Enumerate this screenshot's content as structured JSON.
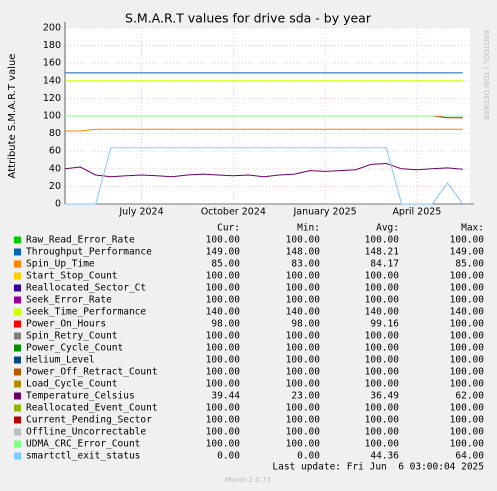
{
  "chart_data": {
    "type": "line",
    "title": "S.M.A.R.T values for drive sda - by year",
    "y_label": "Attribute S.M.A.R.T value",
    "side_text": "RRDTOOL / TOBI OETIKER",
    "categories": [
      null,
      null,
      null,
      null,
      null,
      "July 2024",
      null,
      null,
      null,
      null,
      null,
      "October 2024",
      null,
      null,
      null,
      null,
      null,
      "January 2025",
      null,
      null,
      null,
      null,
      null,
      "April 2025",
      null,
      null,
      null
    ],
    "ylim": [
      0,
      200
    ],
    "yticks": [
      0,
      20,
      40,
      60,
      80,
      100,
      120,
      140,
      160,
      180,
      200
    ],
    "grid": true,
    "legend_headers": [
      "Cur:",
      "Min:",
      "Avg:",
      "Max:"
    ],
    "series": [
      {
        "name": "Raw_Read_Error_Rate",
        "color": "#00cc00",
        "values": [
          100,
          100,
          100,
          100,
          100,
          100,
          100,
          100,
          100,
          100,
          100,
          100,
          100,
          100,
          100,
          100,
          100,
          100,
          100,
          100,
          100,
          100,
          100,
          100,
          100,
          100,
          100
        ],
        "stats": [
          "100.00",
          "100.00",
          "100.00",
          "100.00"
        ]
      },
      {
        "name": "Throughput_Performance",
        "color": "#0066b3",
        "values": [
          149,
          149,
          149,
          149,
          149,
          149,
          149,
          149,
          149,
          149,
          149,
          149,
          149,
          149,
          149,
          149,
          149,
          149,
          149,
          149,
          149,
          149,
          149,
          149,
          149,
          149,
          149
        ],
        "stats": [
          "149.00",
          "148.00",
          "148.21",
          "149.00"
        ]
      },
      {
        "name": "Spin_Up_Time",
        "color": "#ff8000",
        "values": [
          83,
          83,
          85,
          85,
          85,
          85,
          85,
          85,
          85,
          85,
          85,
          85,
          85,
          85,
          85,
          85,
          85,
          85,
          85,
          85,
          85,
          85,
          85,
          85,
          85,
          85,
          85
        ],
        "stats": [
          "85.00",
          "83.00",
          "84.17",
          "85.00"
        ]
      },
      {
        "name": "Start_Stop_Count",
        "color": "#ffcc00",
        "values": [
          100,
          100,
          100,
          100,
          100,
          100,
          100,
          100,
          100,
          100,
          100,
          100,
          100,
          100,
          100,
          100,
          100,
          100,
          100,
          100,
          100,
          100,
          100,
          100,
          100,
          100,
          100
        ],
        "stats": [
          "100.00",
          "100.00",
          "100.00",
          "100.00"
        ]
      },
      {
        "name": "Reallocated_Sector_Ct",
        "color": "#330099",
        "values": [
          100,
          100,
          100,
          100,
          100,
          100,
          100,
          100,
          100,
          100,
          100,
          100,
          100,
          100,
          100,
          100,
          100,
          100,
          100,
          100,
          100,
          100,
          100,
          100,
          100,
          100,
          100
        ],
        "stats": [
          "100.00",
          "100.00",
          "100.00",
          "100.00"
        ]
      },
      {
        "name": "Seek_Error_Rate",
        "color": "#990099",
        "values": [
          100,
          100,
          100,
          100,
          100,
          100,
          100,
          100,
          100,
          100,
          100,
          100,
          100,
          100,
          100,
          100,
          100,
          100,
          100,
          100,
          100,
          100,
          100,
          100,
          100,
          100,
          100
        ],
        "stats": [
          "100.00",
          "100.00",
          "100.00",
          "100.00"
        ]
      },
      {
        "name": "Seek_Time_Performance",
        "color": "#ccff00",
        "values": [
          140,
          140,
          140,
          140,
          140,
          140,
          140,
          140,
          140,
          140,
          140,
          140,
          140,
          140,
          140,
          140,
          140,
          140,
          140,
          140,
          140,
          140,
          140,
          140,
          140,
          140,
          140
        ],
        "stats": [
          "140.00",
          "140.00",
          "140.00",
          "140.00"
        ]
      },
      {
        "name": "Power_On_Hours",
        "color": "#ff0000",
        "values": [
          100,
          100,
          100,
          100,
          100,
          100,
          100,
          100,
          100,
          100,
          100,
          100,
          100,
          100,
          100,
          100,
          100,
          100,
          100,
          100,
          100,
          100,
          100,
          100,
          100,
          98,
          98
        ],
        "stats": [
          "98.00",
          "98.00",
          "99.16",
          "100.00"
        ]
      },
      {
        "name": "Spin_Retry_Count",
        "color": "#808080",
        "values": [
          100,
          100,
          100,
          100,
          100,
          100,
          100,
          100,
          100,
          100,
          100,
          100,
          100,
          100,
          100,
          100,
          100,
          100,
          100,
          100,
          100,
          100,
          100,
          100,
          100,
          100,
          100
        ],
        "stats": [
          "100.00",
          "100.00",
          "100.00",
          "100.00"
        ]
      },
      {
        "name": "Power_Cycle_Count",
        "color": "#008f00",
        "values": [
          100,
          100,
          100,
          100,
          100,
          100,
          100,
          100,
          100,
          100,
          100,
          100,
          100,
          100,
          100,
          100,
          100,
          100,
          100,
          100,
          100,
          100,
          100,
          100,
          100,
          100,
          100
        ],
        "stats": [
          "100.00",
          "100.00",
          "100.00",
          "100.00"
        ]
      },
      {
        "name": "Helium_Level",
        "color": "#00487d",
        "values": [
          100,
          100,
          100,
          100,
          100,
          100,
          100,
          100,
          100,
          100,
          100,
          100,
          100,
          100,
          100,
          100,
          100,
          100,
          100,
          100,
          100,
          100,
          100,
          100,
          100,
          100,
          100
        ],
        "stats": [
          "100.00",
          "100.00",
          "100.00",
          "100.00"
        ]
      },
      {
        "name": "Power_Off_Retract_Count",
        "color": "#b35a00",
        "values": [
          100,
          100,
          100,
          100,
          100,
          100,
          100,
          100,
          100,
          100,
          100,
          100,
          100,
          100,
          100,
          100,
          100,
          100,
          100,
          100,
          100,
          100,
          100,
          100,
          100,
          100,
          100
        ],
        "stats": [
          "100.00",
          "100.00",
          "100.00",
          "100.00"
        ]
      },
      {
        "name": "Load_Cycle_Count",
        "color": "#b38f00",
        "values": [
          100,
          100,
          100,
          100,
          100,
          100,
          100,
          100,
          100,
          100,
          100,
          100,
          100,
          100,
          100,
          100,
          100,
          100,
          100,
          100,
          100,
          100,
          100,
          100,
          100,
          100,
          100
        ],
        "stats": [
          "100.00",
          "100.00",
          "100.00",
          "100.00"
        ]
      },
      {
        "name": "Temperature_Celsius",
        "color": "#6b006b",
        "values": [
          40,
          42,
          33,
          31,
          32,
          33,
          32,
          31,
          33,
          34,
          33,
          32,
          33,
          31,
          33,
          34,
          38,
          37,
          38,
          39,
          45,
          46,
          40,
          39,
          40,
          41,
          39.44
        ],
        "stats": [
          "39.44",
          "23.00",
          "36.49",
          "62.00"
        ]
      },
      {
        "name": "Reallocated_Event_Count",
        "color": "#8fb300",
        "values": [
          100,
          100,
          100,
          100,
          100,
          100,
          100,
          100,
          100,
          100,
          100,
          100,
          100,
          100,
          100,
          100,
          100,
          100,
          100,
          100,
          100,
          100,
          100,
          100,
          100,
          100,
          100
        ],
        "stats": [
          "100.00",
          "100.00",
          "100.00",
          "100.00"
        ]
      },
      {
        "name": "Current_Pending_Sector",
        "color": "#b30000",
        "values": [
          100,
          100,
          100,
          100,
          100,
          100,
          100,
          100,
          100,
          100,
          100,
          100,
          100,
          100,
          100,
          100,
          100,
          100,
          100,
          100,
          100,
          100,
          100,
          100,
          100,
          100,
          100
        ],
        "stats": [
          "100.00",
          "100.00",
          "100.00",
          "100.00"
        ]
      },
      {
        "name": "Offline_Uncorrectable",
        "color": "#bebebe",
        "values": [
          100,
          100,
          100,
          100,
          100,
          100,
          100,
          100,
          100,
          100,
          100,
          100,
          100,
          100,
          100,
          100,
          100,
          100,
          100,
          100,
          100,
          100,
          100,
          100,
          100,
          100,
          100
        ],
        "stats": [
          "100.00",
          "100.00",
          "100.00",
          "100.00"
        ]
      },
      {
        "name": "UDMA_CRC_Error_Count",
        "color": "#80ff80",
        "values": [
          100,
          100,
          100,
          100,
          100,
          100,
          100,
          100,
          100,
          100,
          100,
          100,
          100,
          100,
          100,
          100,
          100,
          100,
          100,
          100,
          100,
          100,
          100,
          100,
          100,
          100,
          100
        ],
        "stats": [
          "100.00",
          "100.00",
          "100.00",
          "100.00"
        ]
      },
      {
        "name": "smartctl_exit_status",
        "color": "#80c9ff",
        "values": [
          0,
          0,
          0,
          64,
          64,
          64,
          64,
          64,
          64,
          64,
          64,
          64,
          64,
          64,
          64,
          64,
          64,
          64,
          64,
          64,
          64,
          64,
          0,
          0,
          0,
          24,
          0
        ],
        "stats": [
          "0.00",
          "0.00",
          "44.36",
          "64.00"
        ]
      }
    ],
    "last_update": "Last update: Fri Jun  6 03:00:04 2025",
    "footer": "Munin 2.0.73"
  }
}
